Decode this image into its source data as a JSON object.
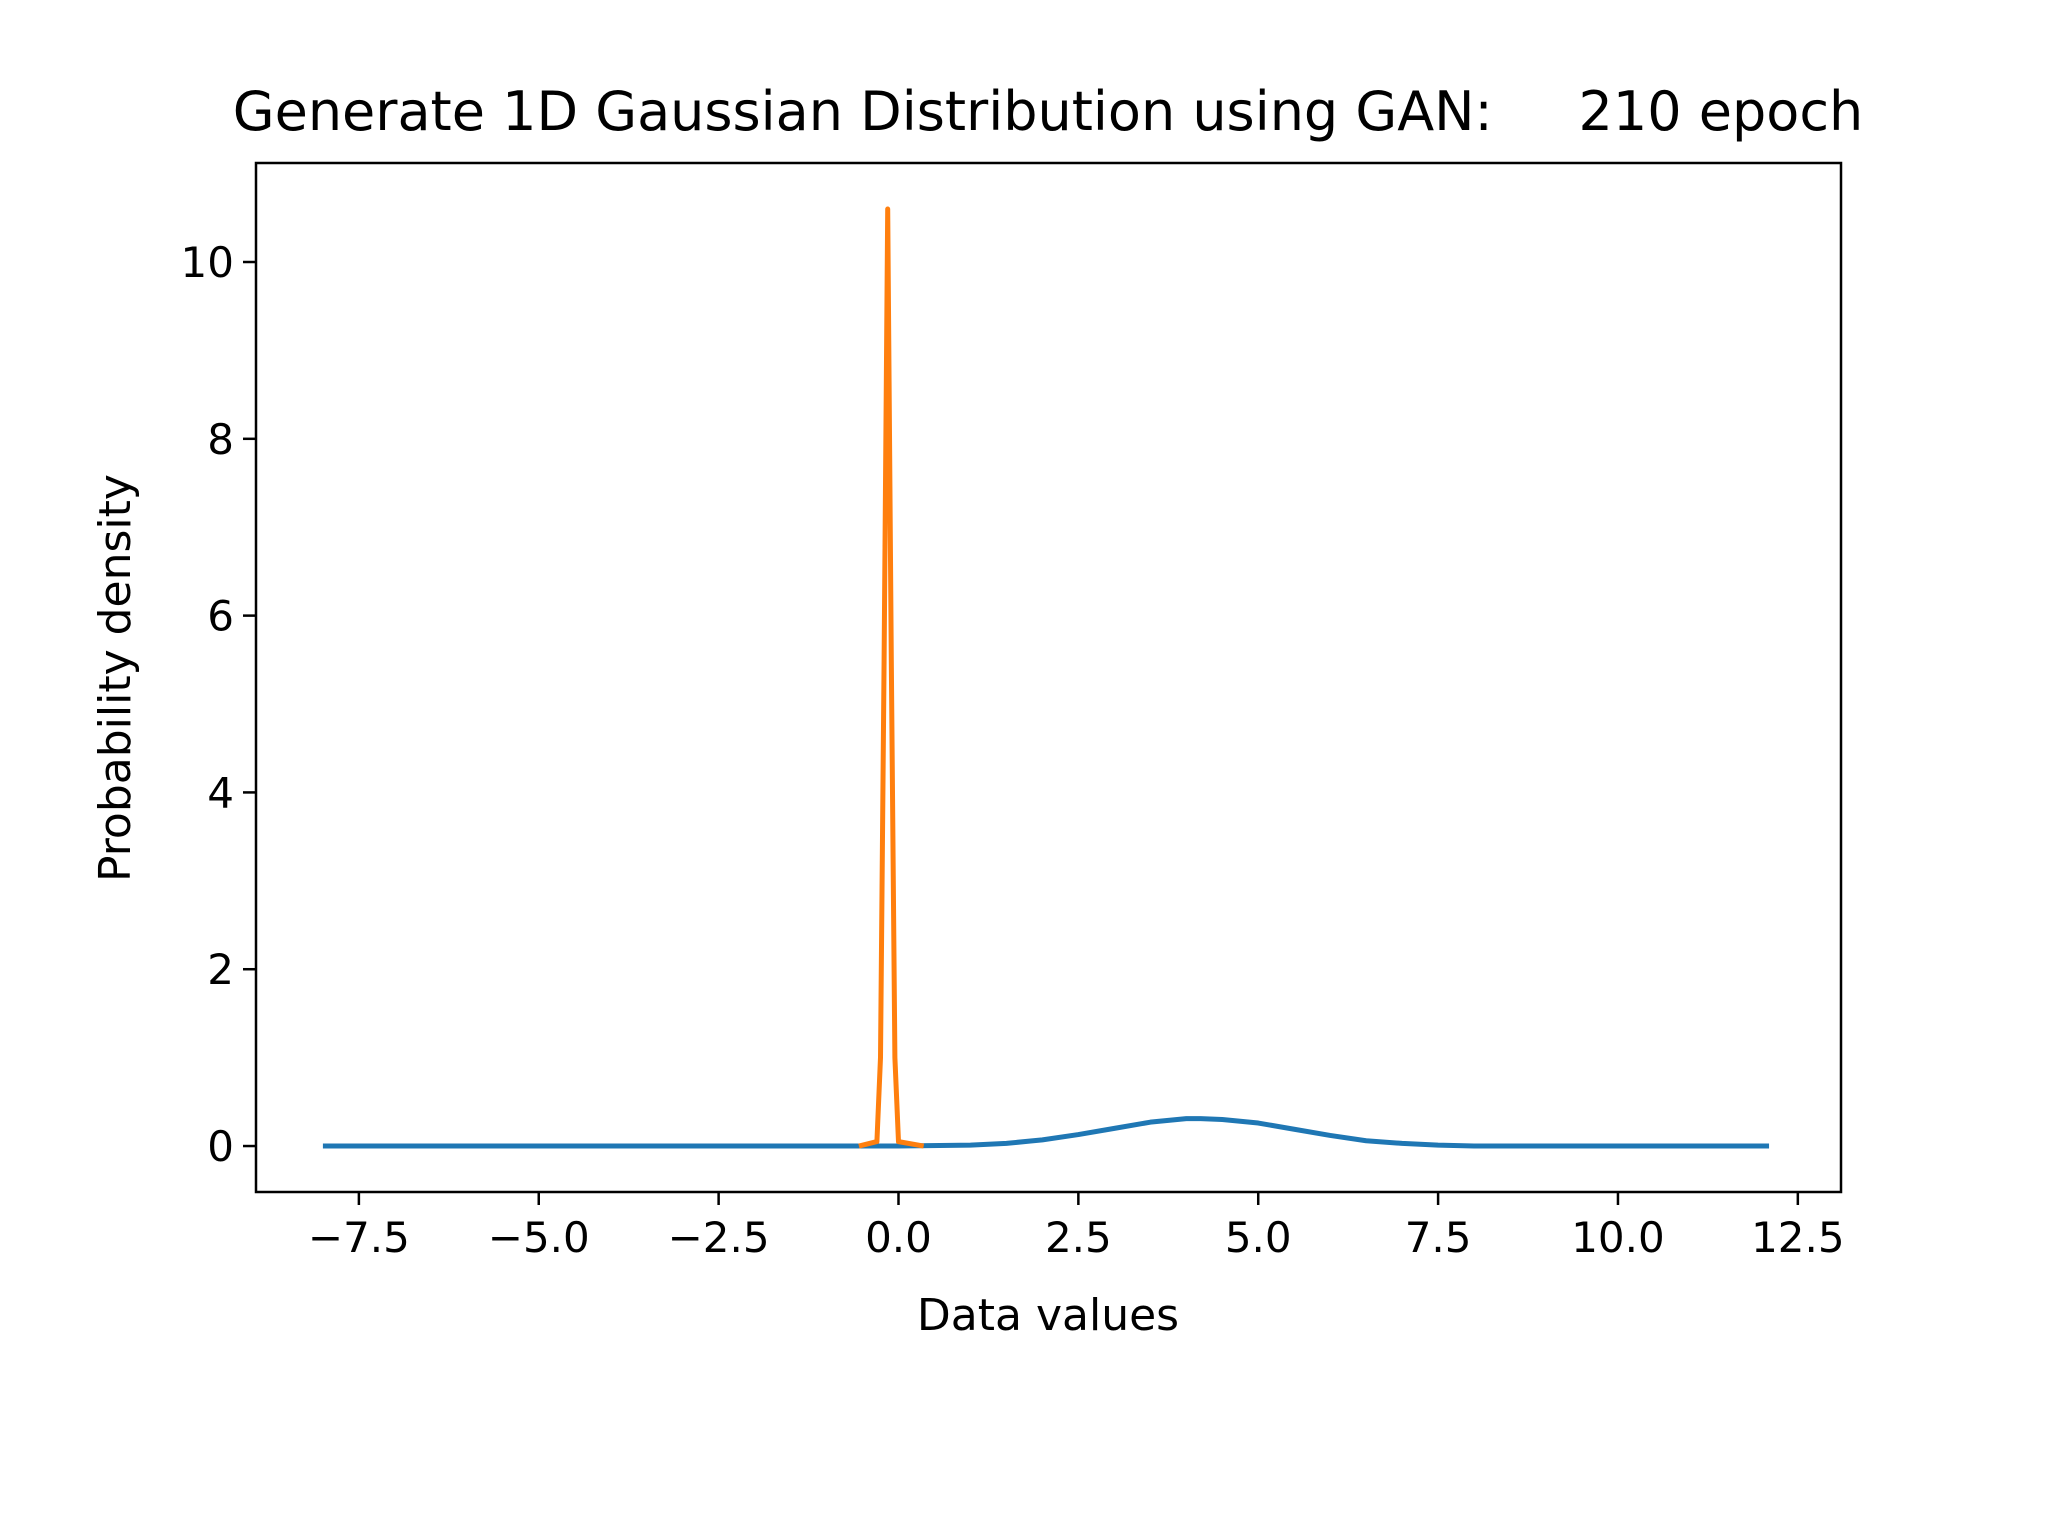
{
  "chart_data": {
    "type": "line",
    "title": "Generate 1D Gaussian Distribution using GAN:     210 epoch",
    "x_label": "Data values",
    "y_label": "Probability density",
    "xlim": [
      -8.93,
      13.1
    ],
    "ylim": [
      -0.52,
      11.12
    ],
    "xticks": [
      {
        "value": -7.5,
        "label": "−7.5"
      },
      {
        "value": -5,
        "label": "−5.0"
      },
      {
        "value": -2.5,
        "label": "−2.5"
      },
      {
        "value": 0,
        "label": "0.0"
      },
      2.5,
      {
        "value": 5,
        "label": "5.0"
      },
      7.5,
      {
        "value": 10,
        "label": "10.0"
      },
      12.5
    ],
    "yticks": [
      0,
      2,
      4,
      6,
      8,
      10
    ],
    "grid": false,
    "series": [
      {
        "color": "#1f77b4",
        "x": [
          -8,
          -6,
          -4,
          -2,
          0,
          1,
          1.5,
          2,
          2.5,
          3,
          3.5,
          4,
          4.2,
          4.5,
          5,
          5.5,
          6,
          6.5,
          7,
          7.5,
          8,
          10,
          12.1
        ],
        "values": [
          0,
          0,
          0,
          0,
          0,
          0.01,
          0.03,
          0.07,
          0.13,
          0.2,
          0.27,
          0.31,
          0.31,
          0.3,
          0.26,
          0.19,
          0.12,
          0.06,
          0.03,
          0.01,
          0,
          0,
          0
        ]
      },
      {
        "color": "#ff7f0e",
        "x": [
          -0.55,
          -0.3,
          -0.25,
          -0.2,
          -0.15,
          -0.1,
          -0.05,
          0,
          0.35
        ],
        "values": [
          0,
          0.05,
          1.0,
          5.5,
          10.6,
          5.5,
          1.0,
          0.05,
          0
        ]
      }
    ]
  }
}
